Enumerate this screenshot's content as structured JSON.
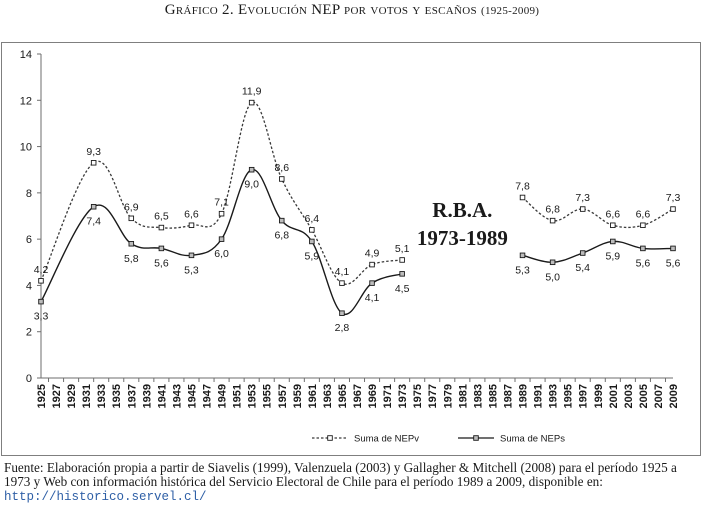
{
  "heading": {
    "text": "Gráfico 2. Evolución NEP por votos y escaños",
    "years": "(1925-2009)"
  },
  "chart_data": {
    "type": "line",
    "x": [
      1925,
      1927,
      1929,
      1931,
      1933,
      1935,
      1937,
      1939,
      1941,
      1943,
      1945,
      1947,
      1949,
      1951,
      1953,
      1955,
      1957,
      1959,
      1961,
      1963,
      1965,
      1967,
      1969,
      1971,
      1973,
      1975,
      1977,
      1979,
      1981,
      1983,
      1985,
      1987,
      1989,
      1991,
      1993,
      1995,
      1997,
      1999,
      2001,
      2003,
      2005,
      2007,
      2009
    ],
    "xticklabels": [
      "1925",
      "1927",
      "1929",
      "1931",
      "1933",
      "1935",
      "1937",
      "1939",
      "1941",
      "1943",
      "1945",
      "1947",
      "1949",
      "1951",
      "1953",
      "1955",
      "1957",
      "1959",
      "1961",
      "1963",
      "1965",
      "1967",
      "1969",
      "1971",
      "1973",
      "1975",
      "1977",
      "1979",
      "1981",
      "1983",
      "1985",
      "1987",
      "1989",
      "1991",
      "1993",
      "1995",
      "1997",
      "1999",
      "2001",
      "2003",
      "2005",
      "2007",
      "2009"
    ],
    "ylim": [
      0,
      14
    ],
    "yticks": [
      0,
      2,
      4,
      6,
      8,
      10,
      12,
      14
    ],
    "grid": false,
    "legend_position": "bottom",
    "series": [
      {
        "name": "Suma de NEPv",
        "style": "dashed",
        "color": "#3a3a3a",
        "marker_fill": "#ffffff",
        "segments": [
          {
            "x": [
              1925,
              1932,
              1937,
              1941,
              1945,
              1949,
              1953,
              1957,
              1961,
              1965,
              1969,
              1973
            ],
            "y": [
              4.2,
              9.3,
              6.9,
              6.5,
              6.6,
              7.1,
              11.9,
              8.6,
              6.4,
              4.1,
              4.9,
              5.1
            ]
          },
          {
            "x": [
              1989,
              1993,
              1997,
              2001,
              2005,
              2009
            ],
            "y": [
              7.8,
              6.8,
              7.3,
              6.6,
              6.6,
              7.3
            ]
          }
        ],
        "labels": [
          {
            "x": 1925,
            "y": 4.2,
            "text": "4,2",
            "pos": "above"
          },
          {
            "x": 1932,
            "y": 9.3,
            "text": "9,3",
            "pos": "above"
          },
          {
            "x": 1937,
            "y": 6.9,
            "text": "6,9",
            "pos": "above"
          },
          {
            "x": 1941,
            "y": 6.5,
            "text": "6,5",
            "pos": "above"
          },
          {
            "x": 1945,
            "y": 6.6,
            "text": "6,6",
            "pos": "above"
          },
          {
            "x": 1949,
            "y": 7.1,
            "text": "7,1",
            "pos": "above"
          },
          {
            "x": 1953,
            "y": 11.9,
            "text": "11,9",
            "pos": "above"
          },
          {
            "x": 1957,
            "y": 8.6,
            "text": "8,6",
            "pos": "above"
          },
          {
            "x": 1961,
            "y": 6.4,
            "text": "6,4",
            "pos": "above"
          },
          {
            "x": 1965,
            "y": 4.1,
            "text": "4,1",
            "pos": "above"
          },
          {
            "x": 1969,
            "y": 4.9,
            "text": "4,9",
            "pos": "above"
          },
          {
            "x": 1973,
            "y": 5.1,
            "text": "5,1",
            "pos": "above"
          },
          {
            "x": 1989,
            "y": 7.8,
            "text": "7,8",
            "pos": "above"
          },
          {
            "x": 1993,
            "y": 6.8,
            "text": "6,8",
            "pos": "above"
          },
          {
            "x": 1997,
            "y": 7.3,
            "text": "7,3",
            "pos": "above"
          },
          {
            "x": 2001,
            "y": 6.6,
            "text": "6,6",
            "pos": "above"
          },
          {
            "x": 2005,
            "y": 6.6,
            "text": "6,6",
            "pos": "above"
          },
          {
            "x": 2009,
            "y": 7.3,
            "text": "7,3",
            "pos": "above"
          }
        ]
      },
      {
        "name": "Suma de NEPs",
        "style": "solid",
        "color": "#1a1a1a",
        "marker_fill": "#bdbdbd",
        "segments": [
          {
            "x": [
              1925,
              1932,
              1937,
              1941,
              1945,
              1949,
              1953,
              1957,
              1961,
              1965,
              1969,
              1973
            ],
            "y": [
              3.3,
              7.4,
              5.8,
              5.6,
              5.3,
              6.0,
              9.0,
              6.8,
              5.9,
              2.8,
              4.1,
              4.5
            ]
          },
          {
            "x": [
              1989,
              1993,
              1997,
              2001,
              2005,
              2009
            ],
            "y": [
              5.3,
              5.0,
              5.4,
              5.9,
              5.6,
              5.6
            ]
          }
        ],
        "labels": [
          {
            "x": 1925,
            "y": 3.3,
            "text": "3,3",
            "pos": "below"
          },
          {
            "x": 1932,
            "y": 7.4,
            "text": "7,4",
            "pos": "below"
          },
          {
            "x": 1937,
            "y": 5.8,
            "text": "5,8",
            "pos": "below"
          },
          {
            "x": 1941,
            "y": 5.6,
            "text": "5,6",
            "pos": "below"
          },
          {
            "x": 1945,
            "y": 5.3,
            "text": "5,3",
            "pos": "below"
          },
          {
            "x": 1949,
            "y": 6.0,
            "text": "6,0",
            "pos": "below"
          },
          {
            "x": 1953,
            "y": 9.0,
            "text": "9,0",
            "pos": "below"
          },
          {
            "x": 1957,
            "y": 6.8,
            "text": "6,8",
            "pos": "below"
          },
          {
            "x": 1961,
            "y": 5.9,
            "text": "5,9",
            "pos": "below"
          },
          {
            "x": 1965,
            "y": 2.8,
            "text": "2,8",
            "pos": "below"
          },
          {
            "x": 1969,
            "y": 4.1,
            "text": "4,1",
            "pos": "below"
          },
          {
            "x": 1973,
            "y": 4.5,
            "text": "4,5",
            "pos": "below"
          },
          {
            "x": 1989,
            "y": 5.3,
            "text": "5,3",
            "pos": "below"
          },
          {
            "x": 1993,
            "y": 5.0,
            "text": "5,0",
            "pos": "below"
          },
          {
            "x": 1997,
            "y": 5.4,
            "text": "5,4",
            "pos": "below"
          },
          {
            "x": 2001,
            "y": 5.9,
            "text": "5,9",
            "pos": "below"
          },
          {
            "x": 2005,
            "y": 5.6,
            "text": "5,6",
            "pos": "below"
          },
          {
            "x": 2009,
            "y": 5.6,
            "text": "5,6",
            "pos": "below"
          }
        ]
      }
    ],
    "annotation": {
      "line1": "R.B.A.",
      "line2": "1973-1989"
    }
  },
  "source": {
    "text": "Fuente: Elaboración propia a partir de Siavelis (1999), Valenzuela (2003) y Gallagher & Mitchell (2008) para el período 1925 a 1973 y Web con información histórica del Servicio Electoral de Chile para el período 1989 a 2009, disponible en: ",
    "link": "http://historico.servel.cl/"
  }
}
